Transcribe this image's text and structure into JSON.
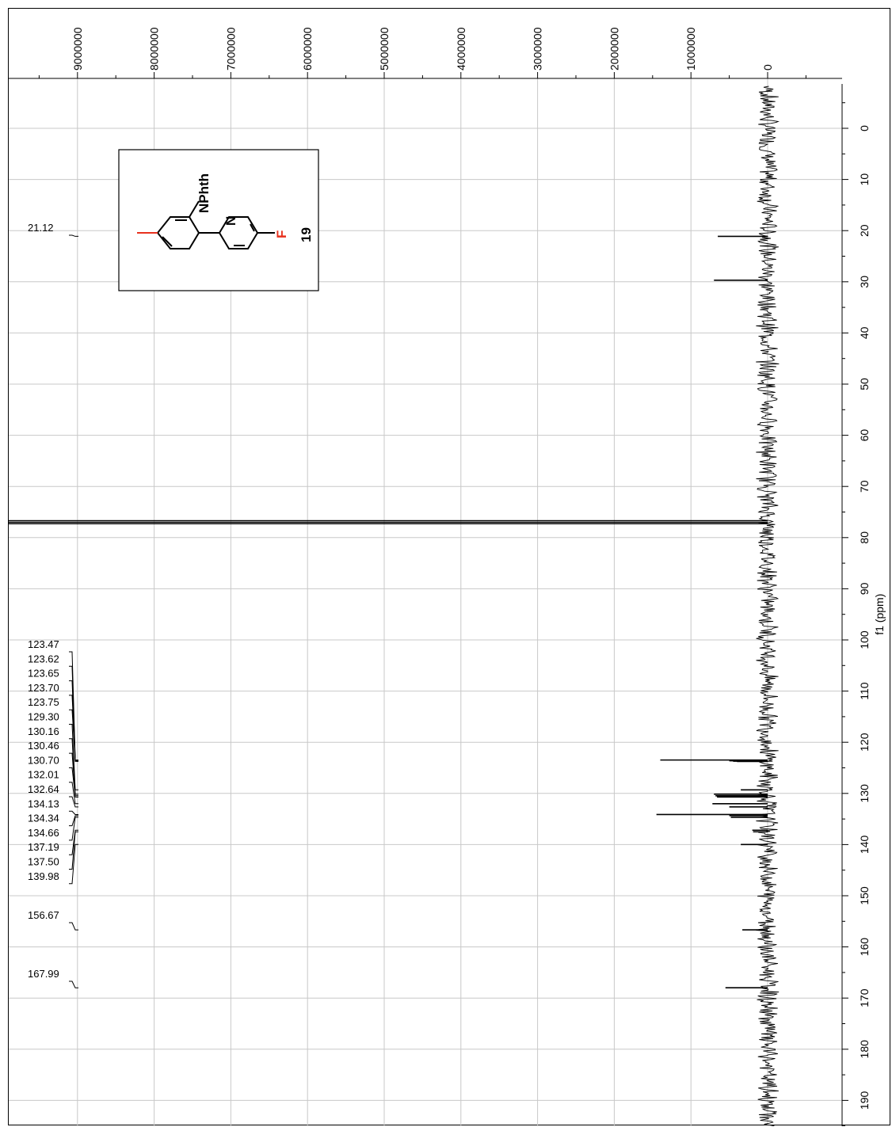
{
  "chart_data": {
    "type": "line",
    "title": "",
    "xlabel": "f1 (ppm)",
    "ylabel": "",
    "x_axis": {
      "range": [
        -7.5,
        197
      ],
      "ticks": [
        0,
        10,
        20,
        30,
        40,
        50,
        60,
        70,
        80,
        90,
        100,
        110,
        120,
        130,
        140,
        150,
        160,
        170,
        180,
        190
      ],
      "tick_labels": [
        "0",
        "10",
        "20",
        "30",
        "40",
        "50",
        "60",
        "70",
        "80",
        "90",
        "100",
        "110",
        "120",
        "130",
        "140",
        "150",
        "160",
        "170",
        "180",
        "190"
      ]
    },
    "y_axis": {
      "range": [
        -1200000,
        9900000
      ],
      "ticks": [
        0,
        1000000,
        2000000,
        3000000,
        4000000,
        5000000,
        6000000,
        7000000,
        8000000,
        9000000
      ],
      "tick_labels": [
        "0",
        "1000000",
        "2000000",
        "3000000",
        "4000000",
        "5000000",
        "6000000",
        "7000000",
        "8000000",
        "9000000"
      ]
    },
    "grid": true,
    "peaks": [
      {
        "ppm": 21.12,
        "intensity": 650000
      },
      {
        "ppm": 29.7,
        "intensity": 700000
      },
      {
        "ppm": 76.7,
        "intensity": 10000000
      },
      {
        "ppm": 77.0,
        "intensity": 10000000
      },
      {
        "ppm": 77.3,
        "intensity": 10000000
      },
      {
        "ppm": 123.47,
        "intensity": 1400000
      },
      {
        "ppm": 123.62,
        "intensity": 500000
      },
      {
        "ppm": 123.65,
        "intensity": 450000
      },
      {
        "ppm": 123.7,
        "intensity": 450000
      },
      {
        "ppm": 123.75,
        "intensity": 400000
      },
      {
        "ppm": 129.3,
        "intensity": 350000
      },
      {
        "ppm": 130.16,
        "intensity": 700000
      },
      {
        "ppm": 130.46,
        "intensity": 680000
      },
      {
        "ppm": 130.7,
        "intensity": 660000
      },
      {
        "ppm": 132.01,
        "intensity": 720000
      },
      {
        "ppm": 132.64,
        "intensity": 500000
      },
      {
        "ppm": 134.13,
        "intensity": 1450000
      },
      {
        "ppm": 134.34,
        "intensity": 500000
      },
      {
        "ppm": 134.66,
        "intensity": 480000
      },
      {
        "ppm": 137.19,
        "intensity": 200000
      },
      {
        "ppm": 137.5,
        "intensity": 190000
      },
      {
        "ppm": 139.98,
        "intensity": 350000
      },
      {
        "ppm": 156.67,
        "intensity": 330000
      },
      {
        "ppm": 167.99,
        "intensity": 550000
      }
    ],
    "peak_labels": {
      "group1": [
        {
          "ppm": 21.12,
          "label": "21.12"
        }
      ],
      "group2": [
        {
          "ppm": 123.47,
          "label": "123.47"
        },
        {
          "ppm": 123.62,
          "label": "123.62"
        },
        {
          "ppm": 123.65,
          "label": "123.65"
        },
        {
          "ppm": 123.7,
          "label": "123.70"
        },
        {
          "ppm": 123.75,
          "label": "123.75"
        },
        {
          "ppm": 129.3,
          "label": "129.30"
        },
        {
          "ppm": 130.16,
          "label": "130.16"
        },
        {
          "ppm": 130.46,
          "label": "130.46"
        },
        {
          "ppm": 130.7,
          "label": "130.70"
        },
        {
          "ppm": 132.01,
          "label": "132.01"
        },
        {
          "ppm": 132.64,
          "label": "132.64"
        },
        {
          "ppm": 134.13,
          "label": "134.13"
        },
        {
          "ppm": 134.34,
          "label": "134.34"
        },
        {
          "ppm": 134.66,
          "label": "134.66"
        },
        {
          "ppm": 137.19,
          "label": "137.19"
        },
        {
          "ppm": 137.5,
          "label": "137.50"
        },
        {
          "ppm": 139.98,
          "label": "139.98"
        }
      ],
      "group3": [
        {
          "ppm": 156.67,
          "label": "156.67"
        }
      ],
      "group4": [
        {
          "ppm": 167.99,
          "label": "167.99"
        }
      ]
    }
  },
  "structure": {
    "label_nphth": "NPhth",
    "label_n": "N",
    "label_f": "F",
    "compound_number": "19",
    "highlight_color": "#e8321e"
  },
  "colors": {
    "spectrum": "#000000",
    "grid": "#c8c8c8"
  }
}
